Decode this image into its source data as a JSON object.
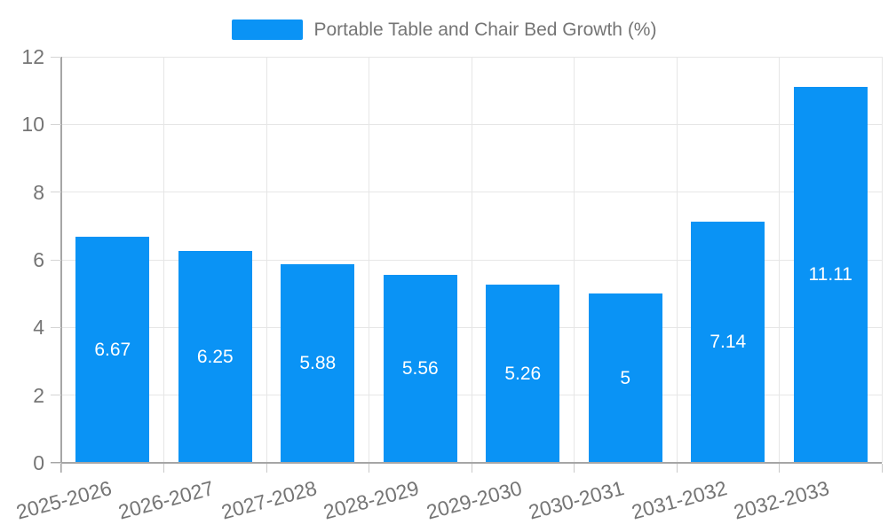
{
  "legend": {
    "label": "Portable Table and Chair Bed Growth (%)"
  },
  "chart_data": {
    "type": "bar",
    "title": "Portable Table and Chair Bed Growth (%)",
    "series_name": "Portable Table and Chair Bed Growth (%)",
    "categories": [
      "2025-2026",
      "2026-2027",
      "2027-2028",
      "2028-2029",
      "2029-2030",
      "2030-2031",
      "2031-2032",
      "2032-2033"
    ],
    "values": [
      6.67,
      6.25,
      5.88,
      5.56,
      5.26,
      5,
      7.14,
      11.11
    ],
    "value_labels": [
      "6.67",
      "6.25",
      "5.88",
      "5.56",
      "5.26",
      "5",
      "7.14",
      "11.11"
    ],
    "xlabel": "",
    "ylabel": "",
    "ylim": [
      0,
      12
    ],
    "yticks": [
      0,
      2,
      4,
      6,
      8,
      10,
      12
    ],
    "grid": true,
    "legend_position": "top-center",
    "bar_label_position": "center",
    "colors": {
      "bar": "#0a93f5",
      "grid": "#e6e6e6",
      "axis": "#a6a6a6",
      "tick_label_text": "#757575",
      "value_label_text": "#ffffff",
      "background": "#ffffff"
    }
  }
}
